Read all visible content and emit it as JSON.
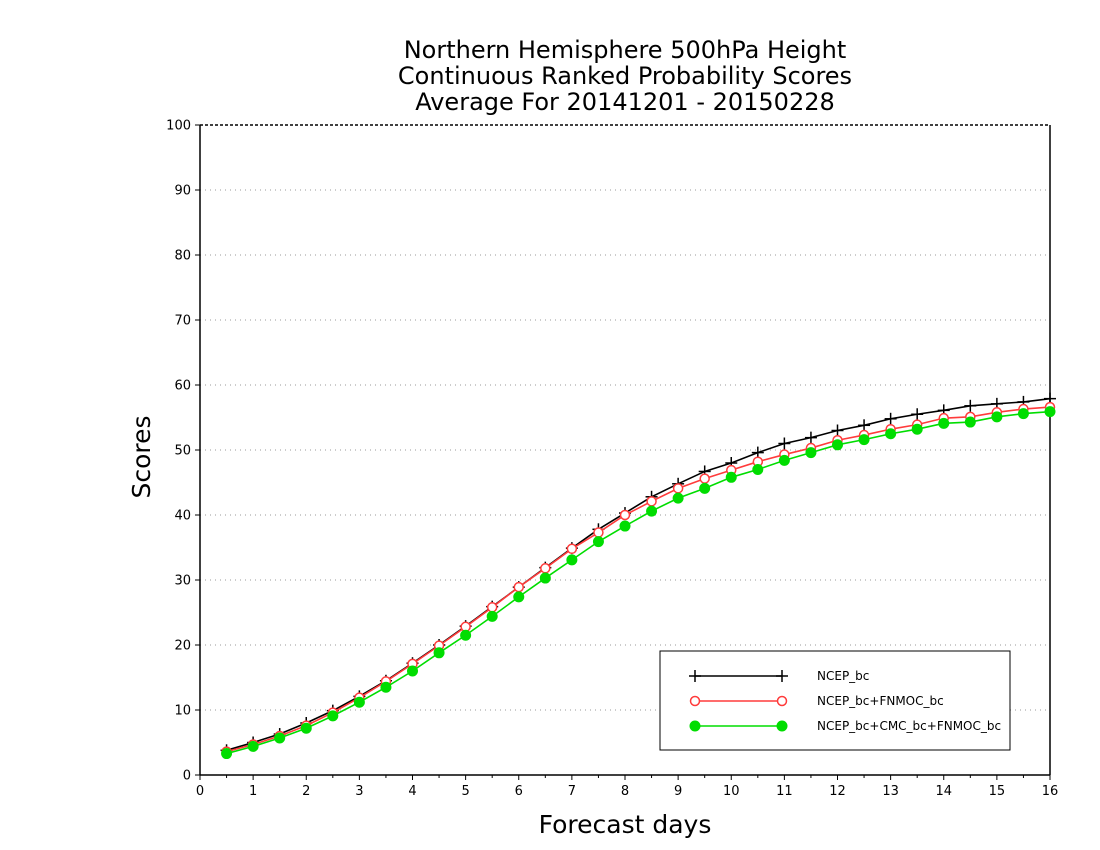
{
  "chart_data": {
    "type": "line",
    "title_lines": [
      "Northern Hemisphere 500hPa Height",
      "Continuous Ranked Probability Scores",
      "Average For 20141201 - 20150228"
    ],
    "xlabel": "Forecast days",
    "ylabel": "Scores",
    "xlim": [
      0,
      16
    ],
    "ylim": [
      0,
      100
    ],
    "x_ticks": [
      0,
      1,
      2,
      3,
      4,
      5,
      6,
      7,
      8,
      9,
      10,
      11,
      12,
      13,
      14,
      15,
      16
    ],
    "y_ticks": [
      0,
      10,
      20,
      30,
      40,
      50,
      60,
      70,
      80,
      90,
      100
    ],
    "grid": "horizontal dotted",
    "legend_position": "bottom-right",
    "x": [
      0.5,
      1,
      1.5,
      2,
      2.5,
      3,
      3.5,
      4,
      4.5,
      5,
      5.5,
      6,
      6.5,
      7,
      7.5,
      8,
      8.5,
      9,
      9.5,
      10,
      10.5,
      11,
      11.5,
      12,
      12.5,
      13,
      13.5,
      14,
      14.5,
      15,
      15.5,
      16
    ],
    "series": [
      {
        "name": "NCEP_bc",
        "color": "#000000",
        "marker": "plus",
        "values": [
          3.8,
          5.0,
          6.3,
          8.0,
          9.9,
          12.1,
          14.5,
          17.2,
          20.0,
          22.9,
          25.9,
          28.9,
          31.9,
          34.9,
          37.8,
          40.3,
          42.8,
          44.8,
          46.7,
          48.0,
          49.6,
          51.0,
          51.9,
          53.0,
          53.8,
          54.8,
          55.5,
          56.1,
          56.8,
          57.1,
          57.4,
          57.9
        ]
      },
      {
        "name": "NCEP_bc+FNMOC_bc",
        "color": "#ff3b3b",
        "marker": "open-circle",
        "values": [
          3.6,
          4.7,
          6.0,
          7.6,
          9.6,
          11.9,
          14.4,
          17.1,
          19.9,
          22.8,
          25.8,
          28.9,
          31.8,
          34.8,
          37.3,
          40.0,
          42.1,
          44.1,
          45.6,
          46.9,
          48.2,
          49.3,
          50.3,
          51.5,
          52.3,
          53.2,
          53.9,
          54.9,
          55.1,
          55.8,
          56.3,
          56.6
        ]
      },
      {
        "name": "NCEP_bc+CMC_bc+FNMOC_bc",
        "color": "#00dd00",
        "marker": "filled-circle",
        "values": [
          3.3,
          4.4,
          5.7,
          7.2,
          9.1,
          11.2,
          13.5,
          16.0,
          18.8,
          21.5,
          24.4,
          27.4,
          30.3,
          33.1,
          35.9,
          38.3,
          40.6,
          42.6,
          44.1,
          45.8,
          47.0,
          48.4,
          49.6,
          50.8,
          51.6,
          52.5,
          53.2,
          54.1,
          54.3,
          55.1,
          55.6,
          55.9
        ]
      }
    ]
  }
}
